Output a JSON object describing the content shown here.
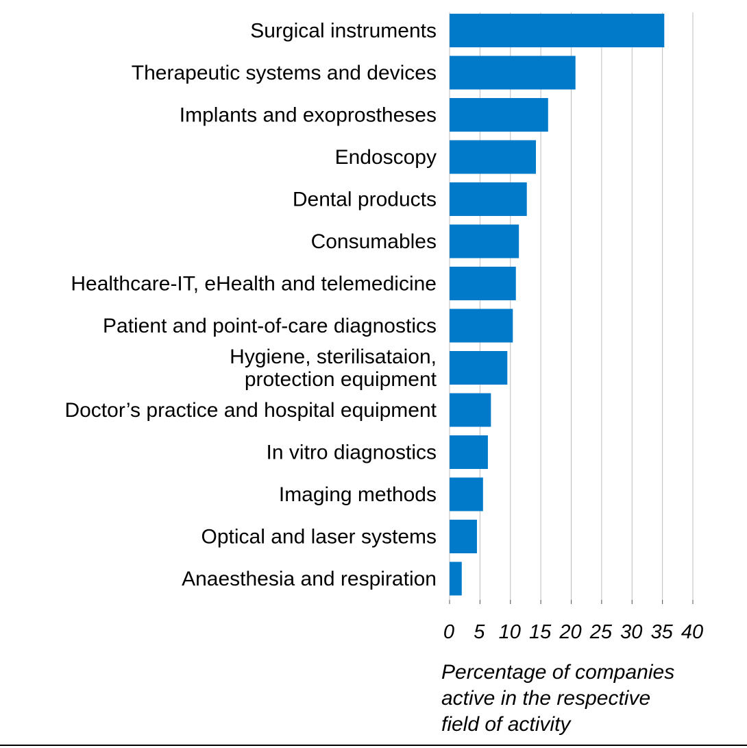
{
  "chart_data": {
    "type": "bar",
    "orientation": "horizontal",
    "categories": [
      [
        "Surgical instruments"
      ],
      [
        "Therapeutic systems and devices"
      ],
      [
        "Implants and exoprostheses"
      ],
      [
        "Endoscopy"
      ],
      [
        "Dental products"
      ],
      [
        "Consumables"
      ],
      [
        "Healthcare-IT, eHealth and telemedicine"
      ],
      [
        "Patient and point-of-care diagnostics"
      ],
      [
        "Hygiene, sterilisataion,",
        "protection equipment"
      ],
      [
        "Doctor’s practice and hospital equipment"
      ],
      [
        "In vitro diagnostics"
      ],
      [
        "Imaging methods"
      ],
      [
        "Optical and laser systems"
      ],
      [
        "Anaesthesia and respiration"
      ]
    ],
    "values": [
      35.3,
      20.7,
      16.2,
      14.2,
      12.7,
      11.4,
      10.9,
      10.4,
      9.5,
      6.8,
      6.3,
      5.5,
      4.5,
      2.0
    ],
    "xlim": [
      0,
      40
    ],
    "xticks": [
      "0",
      "5",
      "10",
      "15",
      "20",
      "25",
      "30",
      "35",
      "40"
    ],
    "xlabel_lines": [
      "Percentage of companies",
      "active in the respective",
      "field of activity"
    ],
    "grid": "vertical",
    "bar_color": "#007ac9",
    "grid_color": "#bdbdbd",
    "text_color": "#000000"
  }
}
